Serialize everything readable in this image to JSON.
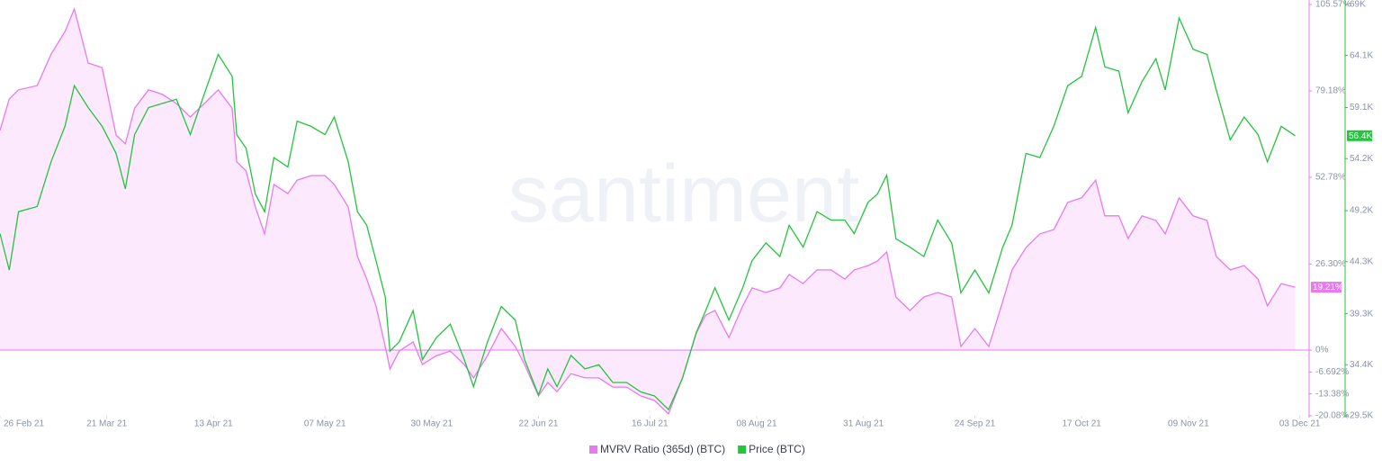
{
  "chart_data": {
    "type": "line",
    "watermark": "santiment",
    "x": [
      "2021-02-26",
      "2021-02-28",
      "2021-03-02",
      "2021-03-06",
      "2021-03-09",
      "2021-03-12",
      "2021-03-14",
      "2021-03-17",
      "2021-03-20",
      "2021-03-23",
      "2021-03-25",
      "2021-03-27",
      "2021-03-30",
      "2021-04-02",
      "2021-04-05",
      "2021-04-08",
      "2021-04-11",
      "2021-04-14",
      "2021-04-17",
      "2021-04-18",
      "2021-04-20",
      "2021-04-22",
      "2021-04-24",
      "2021-04-26",
      "2021-04-29",
      "2021-05-01",
      "2021-05-04",
      "2021-05-07",
      "2021-05-09",
      "2021-05-12",
      "2021-05-14",
      "2021-05-16",
      "2021-05-18",
      "2021-05-20",
      "2021-05-21",
      "2021-05-23",
      "2021-05-26",
      "2021-05-28",
      "2021-05-31",
      "2021-06-03",
      "2021-06-06",
      "2021-06-08",
      "2021-06-11",
      "2021-06-14",
      "2021-06-17",
      "2021-06-19",
      "2021-06-22",
      "2021-06-24",
      "2021-06-26",
      "2021-06-29",
      "2021-07-02",
      "2021-07-05",
      "2021-07-08",
      "2021-07-11",
      "2021-07-14",
      "2021-07-17",
      "2021-07-20",
      "2021-07-23",
      "2021-07-26",
      "2021-07-28",
      "2021-07-30",
      "2021-08-02",
      "2021-08-05",
      "2021-08-07",
      "2021-08-10",
      "2021-08-13",
      "2021-08-15",
      "2021-08-18",
      "2021-08-21",
      "2021-08-24",
      "2021-08-27",
      "2021-08-29",
      "2021-09-01",
      "2021-09-03",
      "2021-09-05",
      "2021-09-07",
      "2021-09-10",
      "2021-09-13",
      "2021-09-16",
      "2021-09-19",
      "2021-09-21",
      "2021-09-24",
      "2021-09-27",
      "2021-09-30",
      "2021-10-02",
      "2021-10-05",
      "2021-10-08",
      "2021-10-11",
      "2021-10-14",
      "2021-10-17",
      "2021-10-20",
      "2021-10-22",
      "2021-10-25",
      "2021-10-27",
      "2021-10-30",
      "2021-11-02",
      "2021-11-04",
      "2021-11-07",
      "2021-11-10",
      "2021-11-13",
      "2021-11-15",
      "2021-11-18",
      "2021-11-21",
      "2021-11-24",
      "2021-11-26",
      "2021-11-29",
      "2021-12-02"
    ],
    "xlim": [
      "2021-02-26",
      "2021-12-05"
    ],
    "xticks": [
      {
        "value": "2021-02-26",
        "label": "26 Feb 21"
      },
      {
        "value": "2021-03-21",
        "label": "21 Mar 21"
      },
      {
        "value": "2021-04-13",
        "label": "13 Apr 21"
      },
      {
        "value": "2021-05-07",
        "label": "07 May 21"
      },
      {
        "value": "2021-05-30",
        "label": "30 May 21"
      },
      {
        "value": "2021-06-22",
        "label": "22 Jun 21"
      },
      {
        "value": "2021-07-16",
        "label": "16 Jul 21"
      },
      {
        "value": "2021-08-08",
        "label": "08 Aug 21"
      },
      {
        "value": "2021-08-31",
        "label": "31 Aug 21"
      },
      {
        "value": "2021-09-24",
        "label": "24 Sep 21"
      },
      {
        "value": "2021-10-17",
        "label": "17 Oct 21"
      },
      {
        "value": "2021-11-09",
        "label": "09 Nov 21"
      },
      {
        "value": "2021-12-03",
        "label": "03 Dec 21"
      }
    ],
    "ylim": [
      -20.08,
      105.57
    ],
    "yticks": [
      {
        "value": -20.08,
        "label": "-20.08%"
      },
      {
        "value": -13.38,
        "label": "-13.38%"
      },
      {
        "value": -6.692,
        "label": "-6.692%"
      },
      {
        "value": 0,
        "label": "0%"
      },
      {
        "value": 26.3,
        "label": "26.30%"
      },
      {
        "value": 52.78,
        "label": "52.78%"
      },
      {
        "value": 79.18,
        "label": "79.18%"
      },
      {
        "value": 105.57,
        "label": "105.57%"
      }
    ],
    "y2lim": [
      29500,
      69000
    ],
    "y2ticks": [
      {
        "value": 29500,
        "label": "29.5K"
      },
      {
        "value": 34400,
        "label": "34.4K"
      },
      {
        "value": 39300,
        "label": "39.3K"
      },
      {
        "value": 44300,
        "label": "44.3K"
      },
      {
        "value": 49200,
        "label": "49.2K"
      },
      {
        "value": 54200,
        "label": "54.2K"
      },
      {
        "value": 59100,
        "label": "59.1K"
      },
      {
        "value": 64100,
        "label": "64.1K"
      },
      {
        "value": 69000,
        "label": "69K"
      }
    ],
    "grid": false,
    "series": [
      {
        "name": "MVRV Ratio (365d) (BTC)",
        "color": "#e879f0",
        "fill": "#fde9fe",
        "axis": "y",
        "last_value_label": "19.21%",
        "values": [
          67.1,
          76.7,
          79.5,
          80.8,
          90.4,
          97.3,
          104.2,
          87.7,
          86.3,
          65.7,
          63.0,
          73.9,
          79.5,
          78.1,
          75.3,
          71.2,
          75.3,
          79.5,
          73.9,
          57.5,
          54.7,
          43.7,
          35.5,
          50.6,
          47.8,
          51.9,
          53.3,
          53.3,
          50.6,
          43.7,
          28.6,
          21.7,
          13.5,
          1.1,
          -5.8,
          -0.3,
          2.5,
          -4.4,
          -1.7,
          -0.3,
          -4.4,
          -8.5,
          -1.7,
          6.6,
          1.1,
          -4.4,
          -14.0,
          -9.9,
          -12.7,
          -7.2,
          -8.5,
          -8.5,
          -11.3,
          -11.3,
          -14.0,
          -15.4,
          -19.5,
          -8.5,
          5.2,
          10.7,
          12.1,
          3.8,
          13.5,
          19.0,
          17.6,
          19.0,
          23.1,
          20.3,
          24.5,
          24.5,
          21.7,
          24.5,
          25.8,
          27.2,
          30.0,
          16.2,
          12.1,
          16.2,
          17.6,
          16.2,
          1.1,
          6.6,
          1.1,
          14.9,
          24.5,
          31.3,
          35.5,
          36.8,
          45.1,
          46.5,
          51.9,
          41.0,
          41.0,
          34.1,
          41.0,
          39.6,
          35.5,
          46.5,
          41.0,
          39.6,
          28.6,
          24.5,
          25.8,
          21.7,
          13.5,
          20.3,
          19.21
        ]
      },
      {
        "name": "Price (BTC)",
        "color": "#26c33f",
        "axis": "y2",
        "last_value_label": "56.4K",
        "values": [
          47000,
          43500,
          49100,
          49600,
          53900,
          57300,
          61200,
          59100,
          57300,
          54700,
          51300,
          56500,
          59100,
          59500,
          59900,
          56500,
          60400,
          64200,
          62100,
          56500,
          55200,
          50800,
          49100,
          54300,
          53400,
          57800,
          57300,
          56500,
          58200,
          53900,
          49100,
          47800,
          44400,
          40900,
          35700,
          36600,
          39600,
          34900,
          37000,
          38300,
          34900,
          32300,
          36600,
          40000,
          38700,
          34900,
          31500,
          34000,
          32300,
          35300,
          34000,
          34400,
          32700,
          32700,
          31800,
          31400,
          30100,
          33100,
          37500,
          39600,
          41800,
          38700,
          41800,
          44400,
          46100,
          44800,
          47800,
          45700,
          49100,
          48300,
          48300,
          47000,
          50000,
          50800,
          52600,
          46500,
          45700,
          44800,
          48300,
          46100,
          41300,
          43500,
          41300,
          45700,
          47800,
          54700,
          54300,
          57300,
          61200,
          62100,
          66800,
          63000,
          62600,
          58600,
          61600,
          63800,
          60800,
          67700,
          64700,
          64200,
          60800,
          56000,
          58200,
          56500,
          53900,
          57300,
          56400
        ]
      }
    ]
  }
}
